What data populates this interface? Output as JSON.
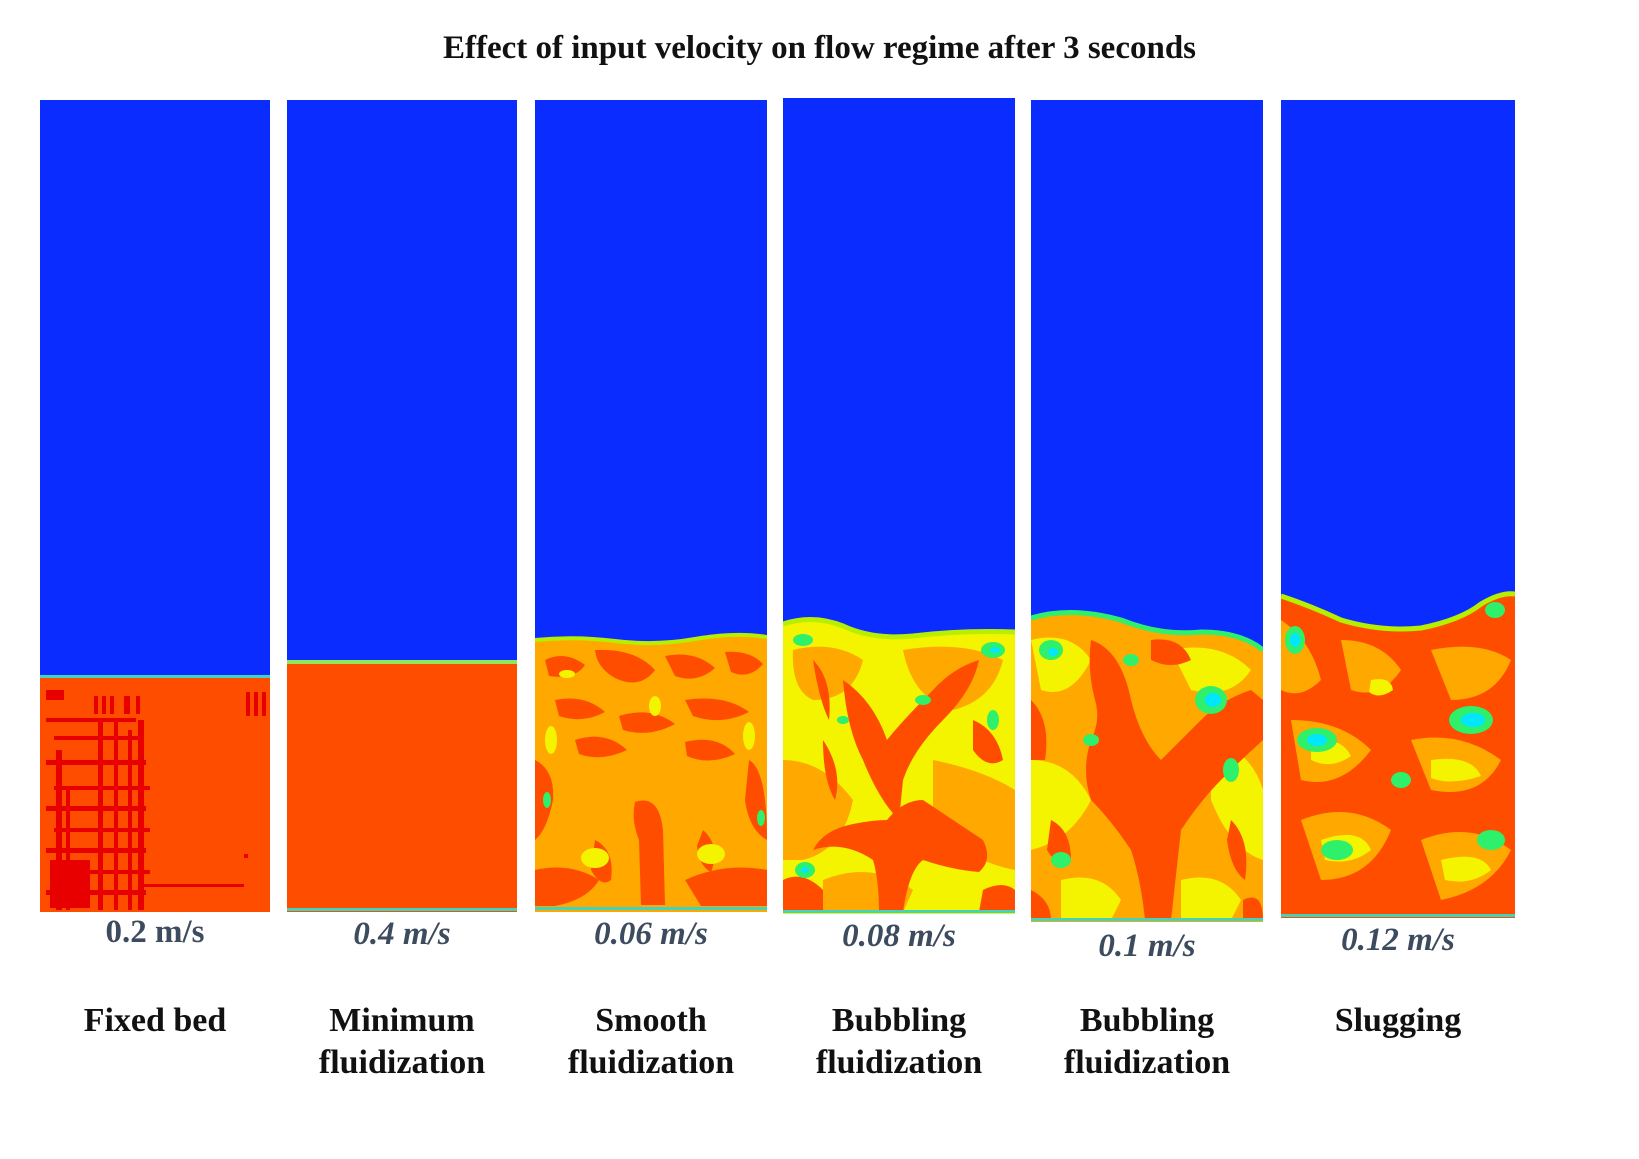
{
  "title": "Effect of input velocity on flow regime after 3 seconds",
  "colors": {
    "gas": "#0a2cff",
    "dense_solid": "#ff4d00",
    "orange": "#ffa800",
    "yellow": "#f4f400",
    "yellow_green": "#b6f000",
    "green": "#2ff06a",
    "cyan": "#00e6ff"
  },
  "panels": [
    {
      "velocity": "0.2 m/s",
      "italic": false,
      "regime_line1": "Fixed bed",
      "regime_line2": ""
    },
    {
      "velocity": "0.4 m/s",
      "italic": true,
      "regime_line1": "Minimum",
      "regime_line2": "fluidization"
    },
    {
      "velocity": "0.06 m/s",
      "italic": true,
      "regime_line1": "Smooth",
      "regime_line2": "fluidization"
    },
    {
      "velocity": "0.08 m/s",
      "italic": true,
      "regime_line1": "Bubbling",
      "regime_line2": "fluidization"
    },
    {
      "velocity": "0.1 m/s",
      "italic": true,
      "regime_line1": "Bubbling",
      "regime_line2": "fluidization"
    },
    {
      "velocity": "0.12 m/s",
      "italic": false,
      "regime_line1": "Slugging",
      "regime_line2": ""
    }
  ]
}
